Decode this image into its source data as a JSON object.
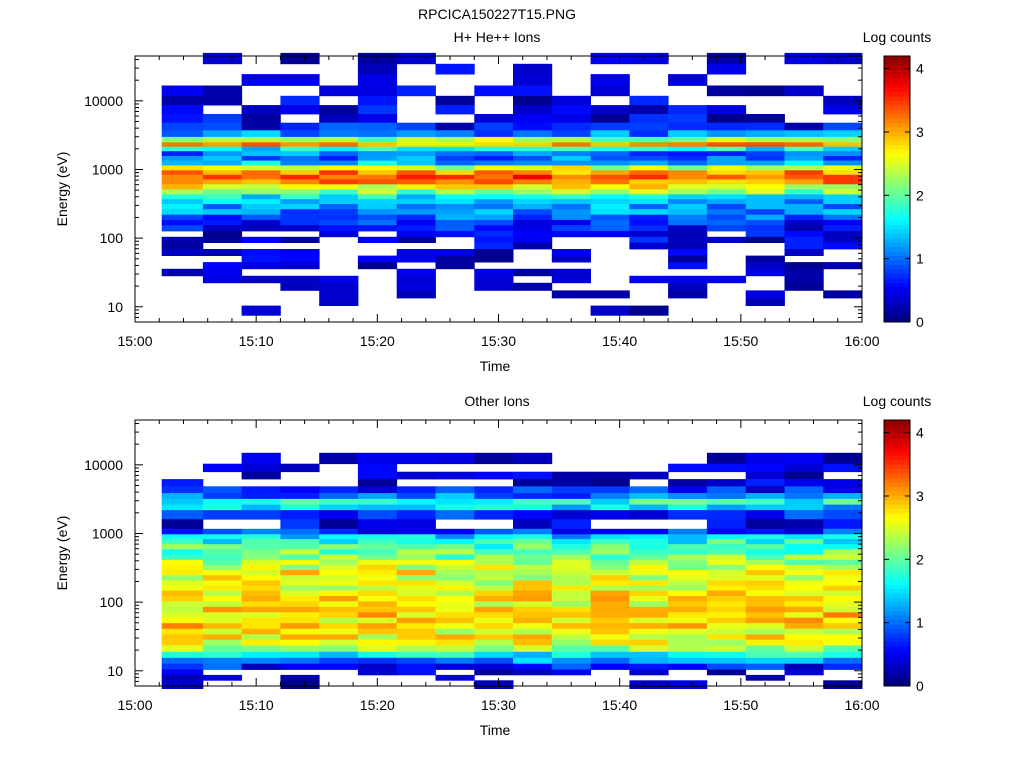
{
  "figure_title": "RPCICA150227T15.PNG",
  "colorscale": [
    "#00007f",
    "#0000ff",
    "#007fff",
    "#00ffff",
    "#7fff7f",
    "#ffff00",
    "#ff7f00",
    "#ff0000",
    "#7f0000"
  ],
  "chart_data": [
    {
      "type": "heatmap",
      "title": "H+ He++ Ions",
      "xlabel": "Time",
      "ylabel": "Energy (eV)",
      "x_ticks": [
        "15:00",
        "15:10",
        "15:20",
        "15:30",
        "15:40",
        "15:50",
        "16:00"
      ],
      "x_range_minutes": [
        0,
        60
      ],
      "y_ticks": [
        "10",
        "100",
        "1000",
        "10000"
      ],
      "y_scale": "log",
      "ylim": [
        6,
        45000
      ],
      "colorbar_label": "Log counts",
      "colorbar_ticks": [
        "0",
        "1",
        "2",
        "3",
        "4"
      ],
      "zlim": [
        0,
        4.2
      ],
      "time_bins_minutes": [
        2.2,
        5.6,
        8.8,
        12.0,
        15.2,
        18.4,
        21.6,
        24.8,
        28.0,
        31.2,
        34.4,
        37.6,
        40.8,
        44.0,
        47.2,
        50.4,
        53.6,
        56.8,
        60.0
      ],
      "energy_profile": [
        {
          "e": 40000,
          "v": 0.2
        },
        {
          "e": 30000,
          "v": 0.25
        },
        {
          "e": 20000,
          "v": 0.25
        },
        {
          "e": 14000,
          "v": 0.3
        },
        {
          "e": 10000,
          "v": 0.3
        },
        {
          "e": 7500,
          "v": 0.35
        },
        {
          "e": 5500,
          "v": 0.45
        },
        {
          "e": 4200,
          "v": 0.55
        },
        {
          "e": 3300,
          "v": 1.1
        },
        {
          "e": 2700,
          "v": 2.2
        },
        {
          "e": 2300,
          "v": 3.0
        },
        {
          "e": 2000,
          "v": 1.6
        },
        {
          "e": 1700,
          "v": 1.0
        },
        {
          "e": 1450,
          "v": 1.0
        },
        {
          "e": 1250,
          "v": 1.3
        },
        {
          "e": 1050,
          "v": 2.4
        },
        {
          "e": 900,
          "v": 3.1
        },
        {
          "e": 780,
          "v": 3.4
        },
        {
          "e": 660,
          "v": 3.1
        },
        {
          "e": 560,
          "v": 2.6
        },
        {
          "e": 470,
          "v": 2.1
        },
        {
          "e": 400,
          "v": 1.6
        },
        {
          "e": 340,
          "v": 1.3
        },
        {
          "e": 290,
          "v": 1.2
        },
        {
          "e": 240,
          "v": 1.1
        },
        {
          "e": 200,
          "v": 0.9
        },
        {
          "e": 170,
          "v": 0.7
        },
        {
          "e": 140,
          "v": 0.55
        },
        {
          "e": 115,
          "v": 0.4
        },
        {
          "e": 95,
          "v": 0.35
        },
        {
          "e": 78,
          "v": 0.3
        },
        {
          "e": 62,
          "v": 0.25
        },
        {
          "e": 50,
          "v": 0.2
        },
        {
          "e": 40,
          "v": 0.2
        },
        {
          "e": 32,
          "v": 0.15
        },
        {
          "e": 25,
          "v": 0.1
        },
        {
          "e": 20,
          "v": 0.1
        },
        {
          "e": 15,
          "v": 0.05
        },
        {
          "e": 12,
          "v": 0.05
        },
        {
          "e": 9,
          "v": 0.05
        }
      ]
    },
    {
      "type": "heatmap",
      "title": "Other Ions",
      "xlabel": "Time",
      "ylabel": "Energy (eV)",
      "x_ticks": [
        "15:00",
        "15:10",
        "15:20",
        "15:30",
        "15:40",
        "15:50",
        "16:00"
      ],
      "x_range_minutes": [
        0,
        60
      ],
      "y_ticks": [
        "10",
        "100",
        "1000",
        "10000"
      ],
      "y_scale": "log",
      "ylim": [
        6,
        45000
      ],
      "colorbar_label": "Log counts",
      "colorbar_ticks": [
        "0",
        "1",
        "2",
        "3",
        "4"
      ],
      "zlim": [
        0,
        4.2
      ],
      "time_bins_minutes": [
        2.2,
        5.6,
        8.8,
        12.0,
        15.2,
        18.4,
        21.6,
        24.8,
        28.0,
        31.2,
        34.4,
        37.6,
        40.8,
        44.0,
        47.2,
        50.4,
        53.6,
        56.8,
        60.0
      ],
      "energy_profile": [
        {
          "e": 12000,
          "v": 0.15
        },
        {
          "e": 9000,
          "v": 0.2
        },
        {
          "e": 7000,
          "v": 0.25
        },
        {
          "e": 5500,
          "v": 0.3
        },
        {
          "e": 4300,
          "v": 0.6
        },
        {
          "e": 3500,
          "v": 1.0
        },
        {
          "e": 2900,
          "v": 1.7
        },
        {
          "e": 2400,
          "v": 1.4
        },
        {
          "e": 2000,
          "v": 0.6
        },
        {
          "e": 1300,
          "v": 0.4
        },
        {
          "e": 1050,
          "v": 0.7
        },
        {
          "e": 900,
          "v": 1.4
        },
        {
          "e": 760,
          "v": 1.7
        },
        {
          "e": 640,
          "v": 1.9
        },
        {
          "e": 540,
          "v": 2.0
        },
        {
          "e": 450,
          "v": 2.1
        },
        {
          "e": 380,
          "v": 2.3
        },
        {
          "e": 320,
          "v": 2.4
        },
        {
          "e": 270,
          "v": 2.6
        },
        {
          "e": 225,
          "v": 2.5
        },
        {
          "e": 190,
          "v": 2.5
        },
        {
          "e": 160,
          "v": 2.6
        },
        {
          "e": 135,
          "v": 2.7
        },
        {
          "e": 112,
          "v": 2.7
        },
        {
          "e": 94,
          "v": 2.6
        },
        {
          "e": 78,
          "v": 2.7
        },
        {
          "e": 65,
          "v": 2.8
        },
        {
          "e": 54,
          "v": 2.7
        },
        {
          "e": 45,
          "v": 2.8
        },
        {
          "e": 37,
          "v": 2.6
        },
        {
          "e": 31,
          "v": 2.6
        },
        {
          "e": 26,
          "v": 2.5
        },
        {
          "e": 21,
          "v": 2.2
        },
        {
          "e": 17,
          "v": 1.5
        },
        {
          "e": 14,
          "v": 1.1
        },
        {
          "e": 11.5,
          "v": 0.6
        },
        {
          "e": 9.5,
          "v": 0.3
        },
        {
          "e": 8,
          "v": 0.2
        },
        {
          "e": 6.6,
          "v": 0.15
        }
      ]
    }
  ]
}
